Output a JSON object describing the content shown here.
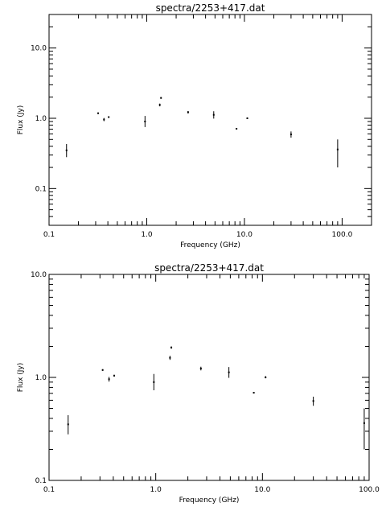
{
  "chart_data": [
    {
      "type": "scatter",
      "title": "spectra/2253+417.dat",
      "xlabel": "Frequency (GHz)",
      "ylabel": "Flux (Jy)",
      "x_scale": "log",
      "y_scale": "log",
      "xlim": [
        0.1,
        200
      ],
      "ylim": [
        0.03,
        30
      ],
      "x_ticks": [
        0.1,
        1,
        10,
        100
      ],
      "x_tick_labels": [
        "0.1",
        "1.0",
        "10.0",
        "100.0"
      ],
      "y_ticks": [
        0.1,
        1,
        10
      ],
      "y_tick_labels": [
        "0.1",
        "1.0",
        "10.0"
      ],
      "grid": false,
      "points": [
        {
          "x": 0.151,
          "y": 0.35,
          "ylo": 0.28,
          "yhi": 0.43
        },
        {
          "x": 0.318,
          "y": 1.18,
          "ylo": 1.16,
          "yhi": 1.2
        },
        {
          "x": 0.365,
          "y": 0.96,
          "ylo": 0.91,
          "yhi": 1.01
        },
        {
          "x": 0.408,
          "y": 1.04,
          "ylo": 1.02,
          "yhi": 1.06
        },
        {
          "x": 0.96,
          "y": 0.9,
          "ylo": 0.75,
          "yhi": 1.08
        },
        {
          "x": 1.36,
          "y": 1.55,
          "ylo": 1.48,
          "yhi": 1.62
        },
        {
          "x": 1.4,
          "y": 1.95,
          "ylo": 1.9,
          "yhi": 2.0
        },
        {
          "x": 2.65,
          "y": 1.22,
          "ylo": 1.17,
          "yhi": 1.27
        },
        {
          "x": 4.85,
          "y": 1.12,
          "ylo": 0.99,
          "yhi": 1.26
        },
        {
          "x": 8.3,
          "y": 0.71,
          "ylo": 0.7,
          "yhi": 0.72
        },
        {
          "x": 10.7,
          "y": 1.0,
          "ylo": 0.98,
          "yhi": 1.03
        },
        {
          "x": 30.0,
          "y": 0.59,
          "ylo": 0.53,
          "yhi": 0.65
        },
        {
          "x": 90.0,
          "y": 0.36,
          "ylo": 0.2,
          "yhi": 0.5
        }
      ]
    },
    {
      "type": "scatter",
      "title": "spectra/2253+417.dat",
      "xlabel": "Frequency (GHz)",
      "ylabel": "Flux (Jy)",
      "x_scale": "log",
      "y_scale": "log",
      "xlim": [
        0.1,
        100
      ],
      "ylim": [
        0.1,
        10
      ],
      "x_ticks": [
        0.1,
        1,
        10,
        100
      ],
      "x_tick_labels": [
        "0.1",
        "1.0",
        "10.0",
        "100.0"
      ],
      "y_ticks": [
        0.1,
        1,
        10
      ],
      "y_tick_labels": [
        "0.1",
        "1.0",
        "10.0"
      ],
      "grid": false,
      "points": [
        {
          "x": 0.151,
          "y": 0.35,
          "ylo": 0.28,
          "yhi": 0.43
        },
        {
          "x": 0.318,
          "y": 1.18,
          "ylo": 1.16,
          "yhi": 1.2
        },
        {
          "x": 0.365,
          "y": 0.96,
          "ylo": 0.91,
          "yhi": 1.01
        },
        {
          "x": 0.408,
          "y": 1.04,
          "ylo": 1.02,
          "yhi": 1.06
        },
        {
          "x": 0.96,
          "y": 0.9,
          "ylo": 0.75,
          "yhi": 1.08
        },
        {
          "x": 1.36,
          "y": 1.55,
          "ylo": 1.48,
          "yhi": 1.62
        },
        {
          "x": 1.4,
          "y": 1.95,
          "ylo": 1.9,
          "yhi": 2.0
        },
        {
          "x": 2.65,
          "y": 1.22,
          "ylo": 1.17,
          "yhi": 1.27
        },
        {
          "x": 4.85,
          "y": 1.12,
          "ylo": 0.99,
          "yhi": 1.26
        },
        {
          "x": 8.3,
          "y": 0.71,
          "ylo": 0.7,
          "yhi": 0.72
        },
        {
          "x": 10.7,
          "y": 1.0,
          "ylo": 0.98,
          "yhi": 1.03
        },
        {
          "x": 30.0,
          "y": 0.59,
          "ylo": 0.53,
          "yhi": 0.65
        },
        {
          "x": 90.0,
          "y": 0.36,
          "ylo": 0.2,
          "yhi": 0.5
        }
      ]
    }
  ]
}
